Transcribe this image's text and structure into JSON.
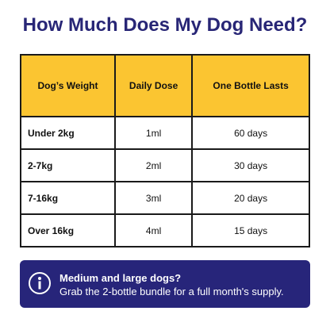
{
  "header": {
    "title": "How Much Does My Dog Need?"
  },
  "table": {
    "columns": [
      "Dog’s Weight",
      "Daily Dose",
      "One Bottle Lasts"
    ],
    "rows": [
      [
        "Under 2kg",
        "1ml",
        "60 days"
      ],
      [
        "2-7kg",
        "2ml",
        "30 days"
      ],
      [
        "7-16kg",
        "3ml",
        "20 days"
      ],
      [
        "Over 16kg",
        "4ml",
        "15 days"
      ]
    ]
  },
  "banner": {
    "heading": "Medium and large dogs?",
    "text": "Grab the 2-bottle bundle for a full month's supply."
  }
}
